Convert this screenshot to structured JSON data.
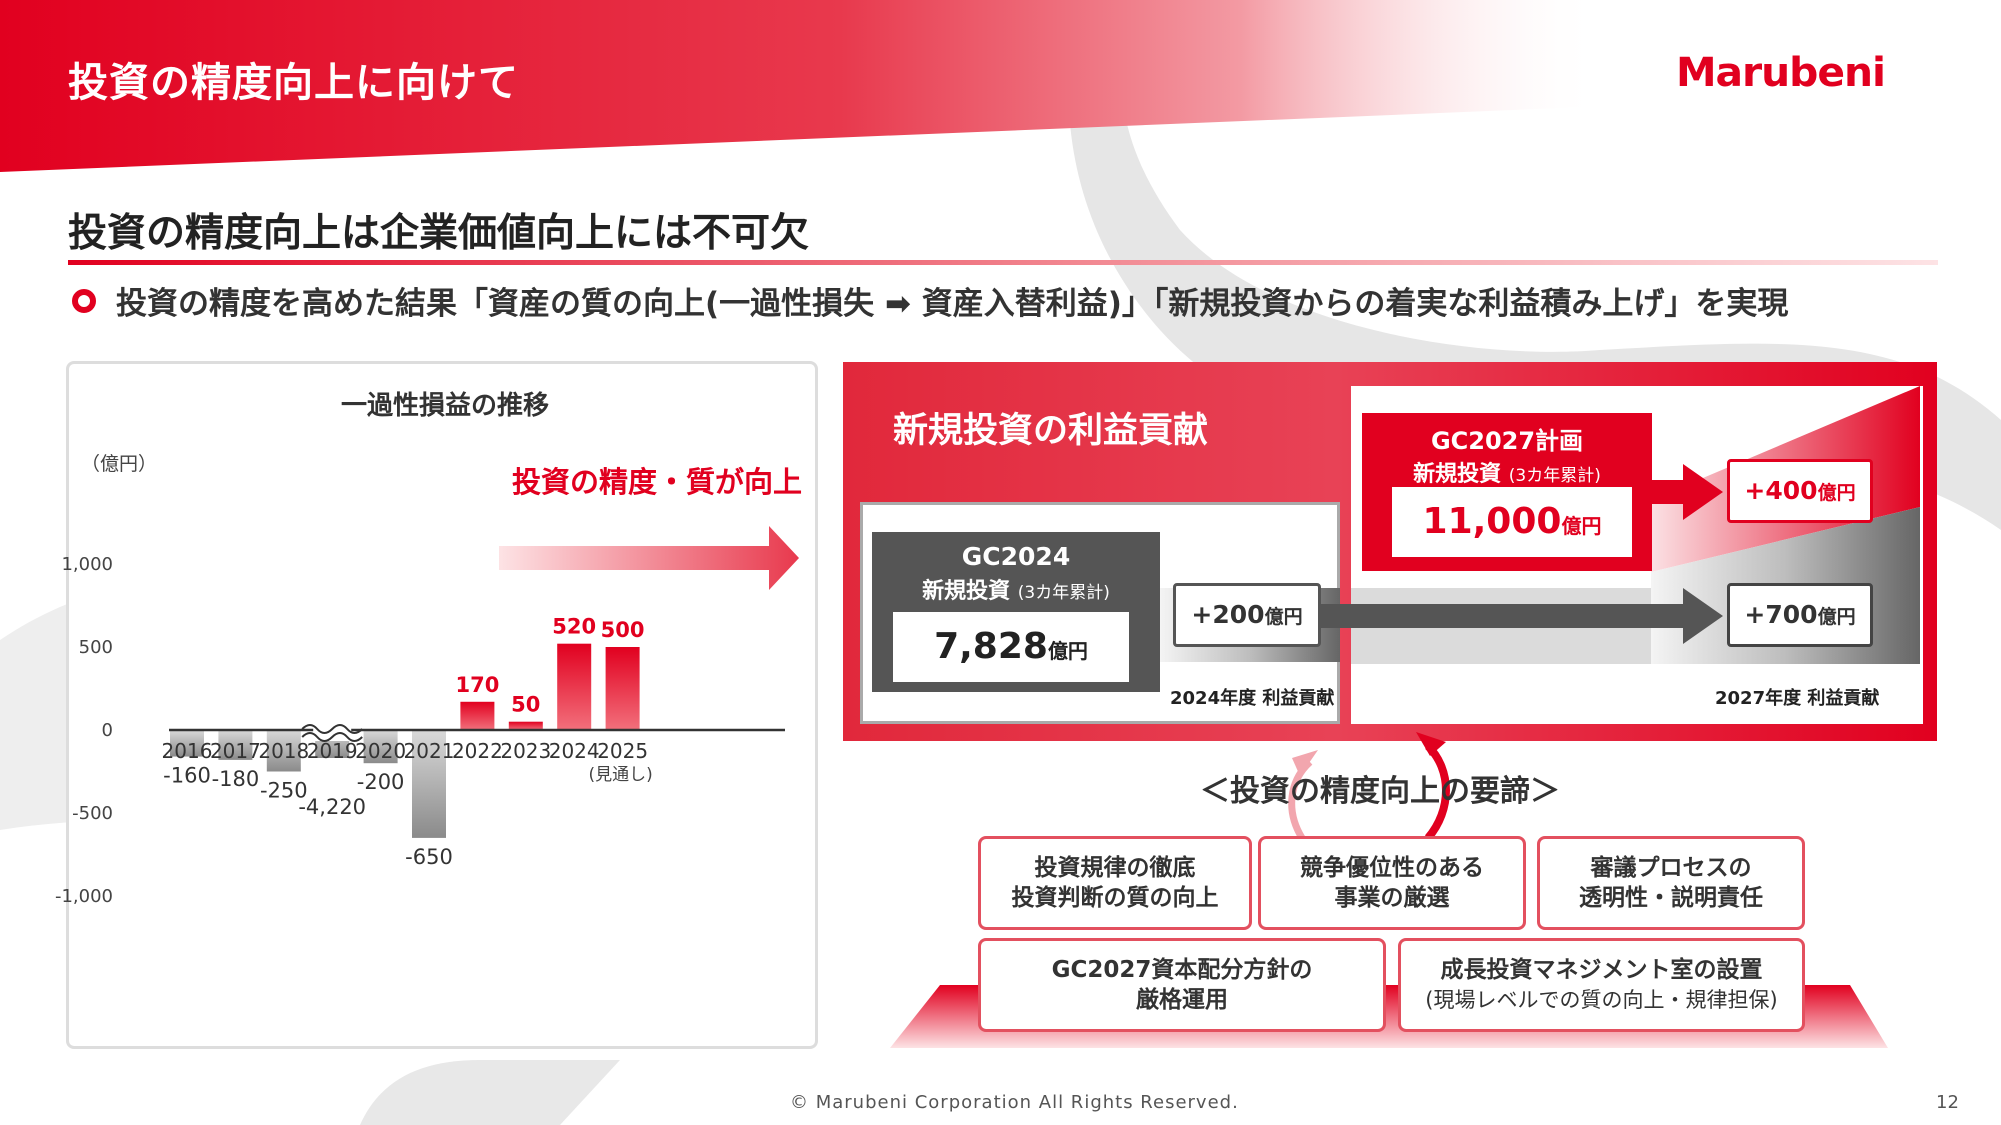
{
  "header": {
    "title": "投資の精度向上に向けて",
    "logo_text": "Marubeni"
  },
  "section": {
    "heading": "投資の精度向上は企業価値向上には不可欠",
    "bullet": "投資の精度を高めた結果「資産の質の向上(一過性損失 ➡ 資産入替利益)」「新規投資からの着実な利益積み上げ」を実現"
  },
  "chart_data": {
    "type": "bar",
    "title": "一過性損益の推移",
    "ylabel": "（億円）",
    "categories": [
      "2016",
      "2017",
      "2018",
      "2019",
      "2020",
      "2021",
      "2022",
      "2023",
      "2024",
      "2025"
    ],
    "values": [
      -160,
      -180,
      -250,
      -4220,
      -200,
      -650,
      170,
      50,
      520,
      500
    ],
    "value_labels": [
      "-160",
      "-180",
      "-250",
      "-4,220",
      "-200",
      "-650",
      "170",
      "50",
      "520",
      "500"
    ],
    "category_note": "(見通し)",
    "y_ticks": [
      "1,000",
      "500",
      "0",
      "-500",
      "-1,000"
    ],
    "y_tick_values": [
      1000,
      500,
      0,
      -500,
      -1000
    ],
    "ylim": [
      -1300,
      1000
    ],
    "axis_break": "2019",
    "annotation": "投資の精度・質が向上",
    "colors": {
      "positive": "#e1001f",
      "negative": "#9a9a9a"
    }
  },
  "contribution": {
    "title": "新規投資の利益貢献",
    "gc2024": {
      "name": "GC2024",
      "label": "新規投資",
      "note": "(3カ年累計)",
      "value": "7,828",
      "unit": "億円"
    },
    "gc2027": {
      "name": "GC2027計画",
      "label": "新規投資",
      "note": "(3カ年累計)",
      "value": "11,000",
      "unit": "億円"
    },
    "plus200": {
      "value": "+200",
      "unit": "億円"
    },
    "plus400": {
      "value": "+400",
      "unit": "億円"
    },
    "plus700": {
      "value": "+700",
      "unit": "億円"
    },
    "label_2024": "2024年度 利益貢献",
    "label_2027": "2027年度 利益貢献"
  },
  "keys": {
    "title": "＜投資の精度向上の要諦＞",
    "items": [
      {
        "line1": "投資規律の徹底",
        "line2": "投資判断の質の向上"
      },
      {
        "line1": "競争優位性のある",
        "line2": "事業の厳選"
      },
      {
        "line1": "審議プロセスの",
        "line2": "透明性・説明責任"
      },
      {
        "line1": "GC2027資本配分方針の",
        "line2": "厳格運用"
      },
      {
        "line1": "成長投資マネジメント室の設置",
        "line2": "(現場レベルでの質の向上・規律担保)"
      }
    ]
  },
  "footer": {
    "copyright": "© Marubeni Corporation All Rights Reserved.",
    "page": "12"
  }
}
